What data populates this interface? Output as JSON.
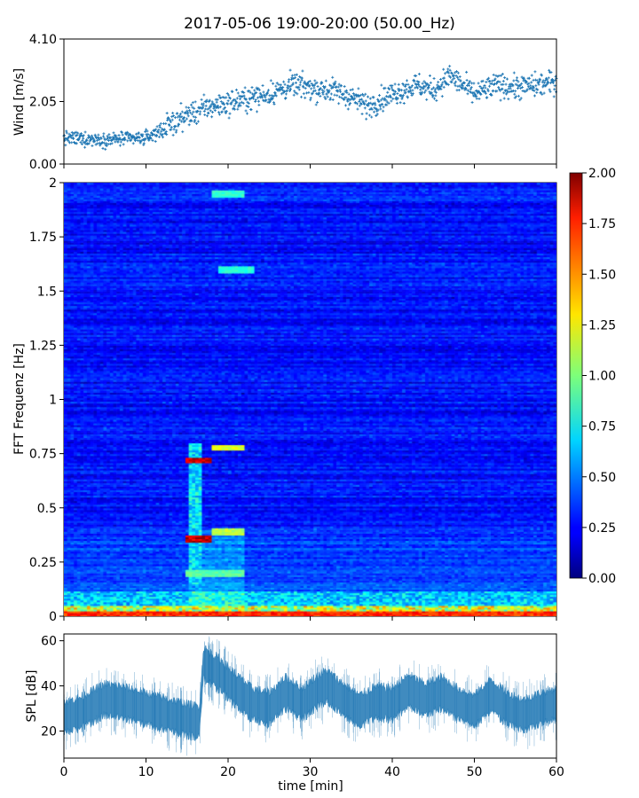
{
  "title": "2017-05-06 19:00-20:00 (50.00_Hz)",
  "chart_data": [
    {
      "type": "scatter",
      "name": "wind",
      "ylabel": "Wind [m/s]",
      "xlim": [
        0,
        60
      ],
      "ylim": [
        0,
        4.1
      ],
      "yticks": [
        "0.00",
        "2.05",
        "4.10"
      ],
      "color": "#1f77b4",
      "marker": "+",
      "trend": {
        "x": [
          0,
          5,
          10,
          13,
          15,
          18,
          20,
          25,
          28,
          30,
          33,
          35,
          37,
          40,
          43,
          45,
          47,
          50,
          53,
          55,
          58,
          60
        ],
        "y": [
          0.85,
          0.8,
          0.85,
          1.3,
          1.6,
          1.9,
          2.0,
          2.3,
          2.6,
          2.5,
          2.4,
          2.2,
          1.9,
          2.3,
          2.6,
          2.4,
          2.9,
          2.3,
          2.6,
          2.5,
          2.6,
          2.7
        ]
      }
    },
    {
      "type": "heatmap",
      "name": "spectrogram",
      "ylabel": "FFT Frequenz [Hz]",
      "xlim": [
        0,
        60
      ],
      "ylim": [
        0,
        2
      ],
      "yticks": [
        "0",
        "0.25",
        "0.5",
        "0.75",
        "1",
        "1.25",
        "1.5",
        "1.75",
        "2"
      ],
      "colormap": "jet",
      "colorbar": {
        "min": 0,
        "max": 2,
        "ticks": [
          "0.00",
          "0.25",
          "0.50",
          "0.75",
          "1.00",
          "1.25",
          "1.50",
          "1.75",
          "2.00"
        ]
      },
      "features": [
        {
          "x": [
            15,
            18
          ],
          "f": 0.72,
          "value": 2.0
        },
        {
          "x": [
            18,
            22
          ],
          "f": 0.78,
          "value": 1.3
        },
        {
          "x": [
            15,
            18
          ],
          "f": 0.36,
          "value": 2.0
        },
        {
          "x": [
            18,
            22
          ],
          "f": 0.39,
          "value": 1.2
        },
        {
          "x": [
            19,
            23
          ],
          "f": 1.6,
          "value": 0.9
        },
        {
          "x": [
            18,
            22
          ],
          "f": 1.95,
          "value": 0.9
        },
        {
          "x": [
            15,
            22
          ],
          "f": 0.2,
          "value": 1.0
        },
        {
          "x": [
            0,
            60
          ],
          "f": 0.01,
          "value": 1.8
        }
      ]
    },
    {
      "type": "area",
      "name": "spl",
      "ylabel": "SPL [dB]",
      "xlabel": "time [min]",
      "xlim": [
        0,
        60
      ],
      "ylim": [
        8,
        63
      ],
      "yticks": [
        "20",
        "40",
        "60"
      ],
      "xticks": [
        "0",
        "10",
        "20",
        "30",
        "40",
        "50",
        "60"
      ],
      "color": "#1f77b4",
      "center": {
        "x": [
          0,
          2,
          5,
          7,
          10,
          13,
          15,
          16.5,
          17,
          19,
          21,
          23,
          25,
          27,
          29,
          31,
          32,
          34,
          36,
          38,
          40,
          42,
          44,
          46,
          48,
          50,
          52,
          54,
          56,
          58,
          60
        ],
        "y": [
          26,
          28,
          34,
          33,
          30,
          27,
          25,
          24,
          50,
          45,
          38,
          32,
          30,
          37,
          32,
          38,
          40,
          34,
          29,
          33,
          32,
          38,
          34,
          37,
          32,
          29,
          36,
          30,
          27,
          30,
          32
        ]
      }
    }
  ]
}
